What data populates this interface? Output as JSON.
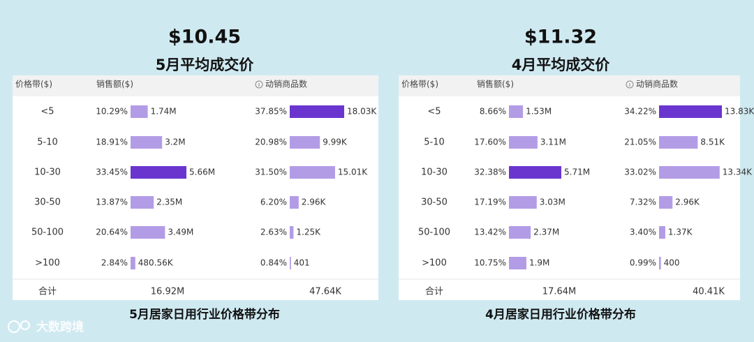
{
  "watermark": "大数跨境",
  "colors": {
    "bar": "#b39ce6",
    "highlight": "#6a35cf",
    "header": "#f2f2f2"
  },
  "panels": [
    {
      "price": "$10.45",
      "subtitle": "5月平均成交价",
      "headers": [
        "价格带($)",
        "销售额($)",
        "动销商品数"
      ],
      "rows": [
        {
          "band": "<5",
          "sales_share": "10.29%",
          "sales": 1.74,
          "sales_label": "1.74M",
          "count_share": "37.85%",
          "count": 18.03,
          "count_label": "18.03K"
        },
        {
          "band": "5-10",
          "sales_share": "18.91%",
          "sales": 3.2,
          "sales_label": "3.2M",
          "count_share": "20.98%",
          "count": 9.99,
          "count_label": "9.99K"
        },
        {
          "band": "10-30",
          "sales_share": "33.45%",
          "sales": 5.66,
          "sales_label": "5.66M",
          "count_share": "31.50%",
          "count": 15.01,
          "count_label": "15.01K"
        },
        {
          "band": "30-50",
          "sales_share": "13.87%",
          "sales": 2.35,
          "sales_label": "2.35M",
          "count_share": "6.20%",
          "count": 2.96,
          "count_label": "2.96K"
        },
        {
          "band": "50-100",
          "sales_share": "20.64%",
          "sales": 3.49,
          "sales_label": "3.49M",
          "count_share": "2.63%",
          "count": 1.25,
          "count_label": "1.25K"
        },
        {
          "band": ">100",
          "sales_share": "2.84%",
          "sales": 0.48056,
          "sales_label": "480.56K",
          "count_share": "0.84%",
          "count": 0.401,
          "count_label": "401"
        }
      ],
      "total": {
        "label": "合计",
        "sales": "16.92M",
        "count": "47.64K"
      },
      "caption": "5月居家日用行业价格带分布"
    },
    {
      "price": "$11.32",
      "subtitle": "4月平均成交价",
      "headers": [
        "价格带($)",
        "销售额($)",
        "动销商品数"
      ],
      "rows": [
        {
          "band": "<5",
          "sales_share": "8.66%",
          "sales": 1.53,
          "sales_label": "1.53M",
          "count_share": "34.22%",
          "count": 13.83,
          "count_label": "13.83K"
        },
        {
          "band": "5-10",
          "sales_share": "17.60%",
          "sales": 3.11,
          "sales_label": "3.11M",
          "count_share": "21.05%",
          "count": 8.51,
          "count_label": "8.51K"
        },
        {
          "band": "10-30",
          "sales_share": "32.38%",
          "sales": 5.71,
          "sales_label": "5.71M",
          "count_share": "33.02%",
          "count": 13.34,
          "count_label": "13.34K"
        },
        {
          "band": "30-50",
          "sales_share": "17.19%",
          "sales": 3.03,
          "sales_label": "3.03M",
          "count_share": "7.32%",
          "count": 2.96,
          "count_label": "2.96K"
        },
        {
          "band": "50-100",
          "sales_share": "13.42%",
          "sales": 2.37,
          "sales_label": "2.37M",
          "count_share": "3.40%",
          "count": 1.37,
          "count_label": "1.37K"
        },
        {
          "band": ">100",
          "sales_share": "10.75%",
          "sales": 1.9,
          "sales_label": "1.9M",
          "count_share": "0.99%",
          "count": 0.4,
          "count_label": "400"
        }
      ],
      "total": {
        "label": "合计",
        "sales": "17.64M",
        "count": "40.41K"
      },
      "caption": "4月居家日用行业价格带分布"
    }
  ]
}
